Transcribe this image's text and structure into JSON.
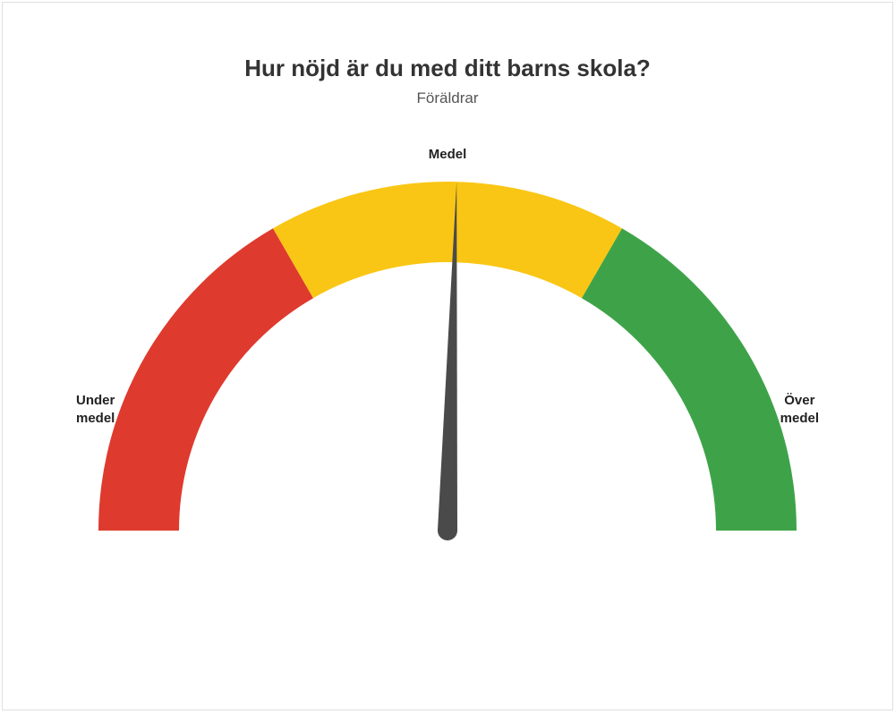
{
  "title": "Hur nöjd är du med ditt barns skola?",
  "subtitle": "Föräldrar",
  "gauge": {
    "type": "gauge",
    "value_angle_deg": 1.5,
    "segments": [
      {
        "start_deg": 0,
        "end_deg": 60,
        "color": "#de3a2e"
      },
      {
        "start_deg": 60,
        "end_deg": 120,
        "color": "#fac615"
      },
      {
        "start_deg": 120,
        "end_deg": 180,
        "color": "#3ea348"
      }
    ],
    "outer_radius": 390,
    "inner_radius": 300,
    "needle_color": "#4a4a4a",
    "needle_length": 390,
    "needle_base_width": 22,
    "pivot_radius": 11,
    "background_color": "#ffffff",
    "labels": {
      "left_line1": "Under",
      "left_line2": "medel",
      "top": "Medel",
      "right_line1": "Över",
      "right_line2": "medel"
    },
    "title_fontsize": 26,
    "subtitle_fontsize": 17,
    "label_fontsize": 15,
    "label_color": "#222222"
  }
}
